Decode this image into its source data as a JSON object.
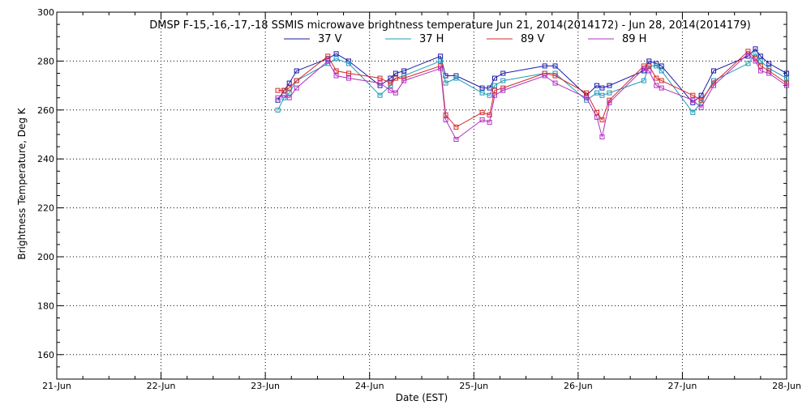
{
  "chart_data": {
    "type": "line",
    "title": "DMSP F-15,-16,-17,-18 SSMIS microwave brightness temperature Jun 21, 2014(2014172) - Jun 28, 2014(2014179)",
    "xlabel": "Date (EST)",
    "ylabel": "Brightness Temperature, Deg K",
    "xlim": [
      0,
      7
    ],
    "ylim": [
      150,
      300
    ],
    "x_ticks": [
      {
        "value": 0,
        "label": "21-Jun"
      },
      {
        "value": 1,
        "label": "22-Jun"
      },
      {
        "value": 2,
        "label": "23-Jun"
      },
      {
        "value": 3,
        "label": "24-Jun"
      },
      {
        "value": 4,
        "label": "25-Jun"
      },
      {
        "value": 5,
        "label": "26-Jun"
      },
      {
        "value": 6,
        "label": "27-Jun"
      },
      {
        "value": 7,
        "label": "28-Jun"
      }
    ],
    "y_ticks": [
      160,
      180,
      200,
      220,
      240,
      260,
      280,
      300
    ],
    "grid": true,
    "legend_position": "top",
    "series": [
      {
        "name": "37 V",
        "color": "#1a1aaa",
        "points": [
          [
            2.12,
            264
          ],
          [
            2.18,
            268
          ],
          [
            2.23,
            271
          ],
          [
            2.3,
            276
          ],
          [
            2.6,
            281
          ],
          [
            2.68,
            283
          ],
          [
            2.8,
            280
          ],
          [
            3.1,
            270
          ],
          [
            3.2,
            273
          ],
          [
            3.25,
            275
          ],
          [
            3.33,
            276
          ],
          [
            3.68,
            282
          ],
          [
            3.73,
            274
          ],
          [
            3.83,
            274
          ],
          [
            4.08,
            269
          ],
          [
            4.15,
            269
          ],
          [
            4.2,
            273
          ],
          [
            4.28,
            275
          ],
          [
            4.68,
            278
          ],
          [
            4.78,
            278
          ],
          [
            5.08,
            266
          ],
          [
            5.18,
            270
          ],
          [
            5.23,
            269
          ],
          [
            5.3,
            270
          ],
          [
            5.63,
            276
          ],
          [
            5.68,
            280
          ],
          [
            5.75,
            279
          ],
          [
            5.8,
            278
          ],
          [
            6.1,
            263
          ],
          [
            6.18,
            266
          ],
          [
            6.3,
            276
          ],
          [
            6.63,
            282
          ],
          [
            6.7,
            285
          ],
          [
            6.75,
            282
          ],
          [
            6.83,
            279
          ],
          [
            7.0,
            275
          ]
        ]
      },
      {
        "name": "37 H",
        "color": "#1f98b8",
        "points": [
          [
            2.12,
            260
          ],
          [
            2.18,
            265
          ],
          [
            2.23,
            267
          ],
          [
            2.3,
            272
          ],
          [
            2.6,
            279
          ],
          [
            2.68,
            281
          ],
          [
            2.8,
            279
          ],
          [
            3.1,
            266
          ],
          [
            3.2,
            270
          ],
          [
            3.25,
            273
          ],
          [
            3.33,
            274
          ],
          [
            3.68,
            280
          ],
          [
            3.73,
            271
          ],
          [
            3.83,
            273
          ],
          [
            4.08,
            267
          ],
          [
            4.15,
            266
          ],
          [
            4.2,
            270
          ],
          [
            4.28,
            272
          ],
          [
            4.68,
            275
          ],
          [
            4.78,
            275
          ],
          [
            5.08,
            264
          ],
          [
            5.18,
            267
          ],
          [
            5.23,
            266
          ],
          [
            5.3,
            267
          ],
          [
            5.63,
            272
          ],
          [
            5.68,
            278
          ],
          [
            5.75,
            278
          ],
          [
            5.8,
            276
          ],
          [
            6.1,
            259
          ],
          [
            6.18,
            263
          ],
          [
            6.3,
            272
          ],
          [
            6.63,
            279
          ],
          [
            6.7,
            283
          ],
          [
            6.75,
            280
          ],
          [
            6.83,
            277
          ],
          [
            7.0,
            273
          ]
        ]
      },
      {
        "name": "89 V",
        "color": "#d42828",
        "points": [
          [
            2.12,
            268
          ],
          [
            2.18,
            268
          ],
          [
            2.23,
            269
          ],
          [
            2.3,
            272
          ],
          [
            2.6,
            282
          ],
          [
            2.68,
            276
          ],
          [
            2.8,
            275
          ],
          [
            3.1,
            273
          ],
          [
            3.2,
            271
          ],
          [
            3.25,
            273
          ],
          [
            3.33,
            273
          ],
          [
            3.68,
            278
          ],
          [
            3.73,
            258
          ],
          [
            3.83,
            253
          ],
          [
            4.08,
            259
          ],
          [
            4.15,
            258
          ],
          [
            4.2,
            268
          ],
          [
            4.28,
            269
          ],
          [
            4.68,
            275
          ],
          [
            4.78,
            274
          ],
          [
            5.08,
            267
          ],
          [
            5.18,
            259
          ],
          [
            5.23,
            256
          ],
          [
            5.3,
            264
          ],
          [
            5.63,
            278
          ],
          [
            5.68,
            278
          ],
          [
            5.75,
            273
          ],
          [
            5.8,
            272
          ],
          [
            6.1,
            266
          ],
          [
            6.18,
            264
          ],
          [
            6.3,
            271
          ],
          [
            6.63,
            284
          ],
          [
            6.7,
            281
          ],
          [
            6.75,
            278
          ],
          [
            6.83,
            276
          ],
          [
            7.0,
            271
          ]
        ]
      },
      {
        "name": "89 H",
        "color": "#b030c0",
        "points": [
          [
            2.12,
            265
          ],
          [
            2.18,
            266
          ],
          [
            2.23,
            265
          ],
          [
            2.3,
            269
          ],
          [
            2.6,
            280
          ],
          [
            2.68,
            274
          ],
          [
            2.8,
            273
          ],
          [
            3.1,
            271
          ],
          [
            3.2,
            268
          ],
          [
            3.25,
            267
          ],
          [
            3.33,
            272
          ],
          [
            3.68,
            277
          ],
          [
            3.73,
            256
          ],
          [
            3.83,
            248
          ],
          [
            4.08,
            256
          ],
          [
            4.15,
            255
          ],
          [
            4.2,
            266
          ],
          [
            4.28,
            268
          ],
          [
            4.68,
            274
          ],
          [
            4.78,
            271
          ],
          [
            5.08,
            265
          ],
          [
            5.18,
            257
          ],
          [
            5.23,
            249
          ],
          [
            5.3,
            263
          ],
          [
            5.63,
            277
          ],
          [
            5.68,
            276
          ],
          [
            5.75,
            270
          ],
          [
            5.8,
            269
          ],
          [
            6.1,
            264
          ],
          [
            6.18,
            261
          ],
          [
            6.3,
            270
          ],
          [
            6.63,
            283
          ],
          [
            6.7,
            280
          ],
          [
            6.75,
            276
          ],
          [
            6.83,
            275
          ],
          [
            7.0,
            270
          ]
        ]
      }
    ]
  }
}
